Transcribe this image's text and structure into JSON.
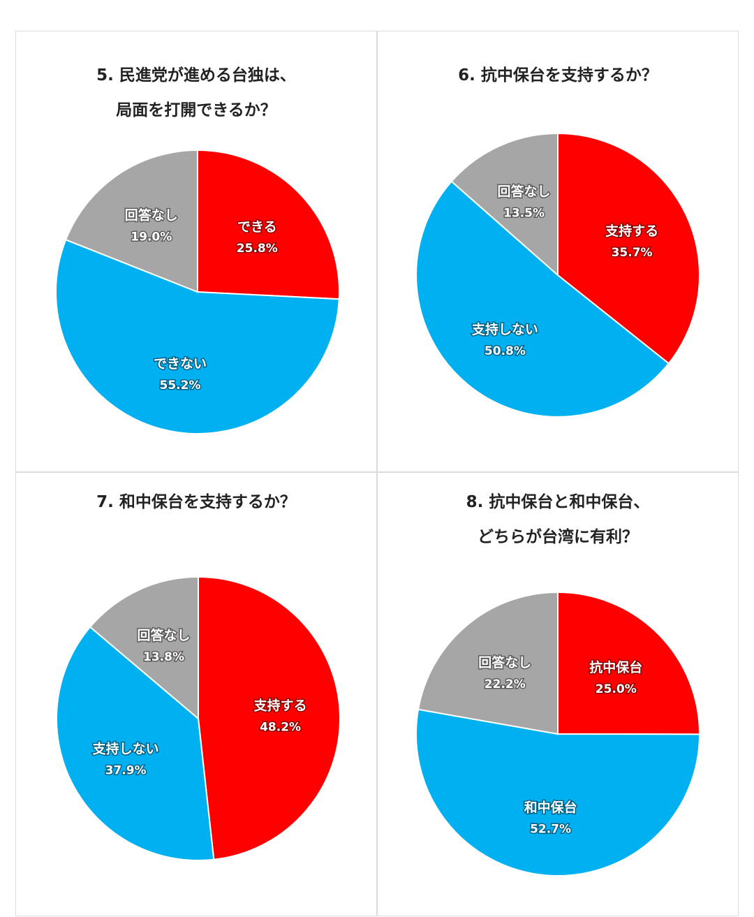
{
  "chart_data": [
    {
      "type": "pie",
      "title": "5. 民進党が進める台独は、\n局面を打開できるか？",
      "slices": [
        {
          "label": "できる",
          "value": 25.8,
          "display": "25.8%",
          "color": "#ff0000"
        },
        {
          "label": "できない",
          "value": 55.2,
          "display": "55.2%",
          "color": "#00b0f0"
        },
        {
          "label": "回答なし",
          "value": 19.0,
          "display": "19.0%",
          "color": "#a6a6a6"
        }
      ]
    },
    {
      "type": "pie",
      "title": "6. 抗中保台を支持するか？",
      "slices": [
        {
          "label": "支持する",
          "value": 35.7,
          "display": "35.7%",
          "color": "#ff0000"
        },
        {
          "label": "支持しない",
          "value": 50.8,
          "display": "50.8%",
          "color": "#00b0f0"
        },
        {
          "label": "回答なし",
          "value": 13.5,
          "display": "13.5%",
          "color": "#a6a6a6"
        }
      ]
    },
    {
      "type": "pie",
      "title": "7. 和中保台を支持するか？",
      "slices": [
        {
          "label": "支持する",
          "value": 48.2,
          "display": "48.2%",
          "color": "#ff0000"
        },
        {
          "label": "支持しない",
          "value": 37.9,
          "display": "37.9%",
          "color": "#00b0f0"
        },
        {
          "label": "回答なし",
          "value": 13.8,
          "display": "13.8%",
          "color": "#a6a6a6"
        }
      ]
    },
    {
      "type": "pie",
      "title": "8. 抗中保台と和中保台、\nどちらが台湾に有利？",
      "slices": [
        {
          "label": "抗中保台",
          "value": 25.0,
          "display": "25.0%",
          "color": "#ff0000"
        },
        {
          "label": "和中保台",
          "value": 52.7,
          "display": "52.7%",
          "color": "#00b0f0"
        },
        {
          "label": "回答なし",
          "value": 22.2,
          "display": "22.2%",
          "color": "#a6a6a6"
        }
      ]
    }
  ]
}
